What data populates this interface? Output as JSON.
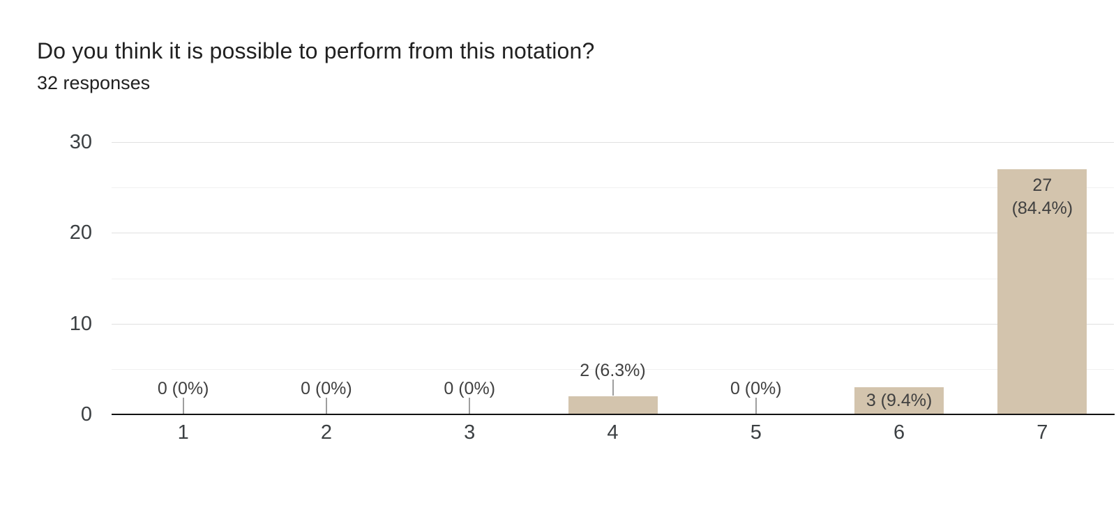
{
  "header": {
    "title": "Do you think it is possible to perform from this notation?",
    "responses": "32 responses"
  },
  "chart_data": {
    "type": "bar",
    "title": "Do you think it is possible to perform from this notation?",
    "subtitle": "32 responses",
    "categories": [
      "1",
      "2",
      "3",
      "4",
      "5",
      "6",
      "7"
    ],
    "values": [
      0,
      0,
      0,
      2,
      0,
      3,
      27
    ],
    "labels": [
      [
        "0 (0%)"
      ],
      [
        "0 (0%)"
      ],
      [
        "0 (0%)"
      ],
      [
        "2 (6.3%)"
      ],
      [
        "0 (0%)"
      ],
      [
        "3 (9.4%)"
      ],
      [
        "27",
        "(84.4%)"
      ]
    ],
    "label_placement": [
      "above-axis",
      "above-axis",
      "above-axis",
      "above-bar",
      "above-axis",
      "inside-middle",
      "inside-top"
    ],
    "xlabel": "",
    "ylabel": "",
    "ylim": [
      0,
      30
    ],
    "yticks": [
      0,
      10,
      20,
      30
    ],
    "grid_step": 5,
    "legend": "none",
    "grid": "on",
    "colors": {
      "bar_fill": "#d3c4ad",
      "annotation_text": "#404040",
      "annotation_stem": "#9e9e9e",
      "axis_text": "#3c4043",
      "baseline": "#111111",
      "gridline_major": "#e0e0e0",
      "gridline_minor": "#f1f1f1"
    }
  }
}
